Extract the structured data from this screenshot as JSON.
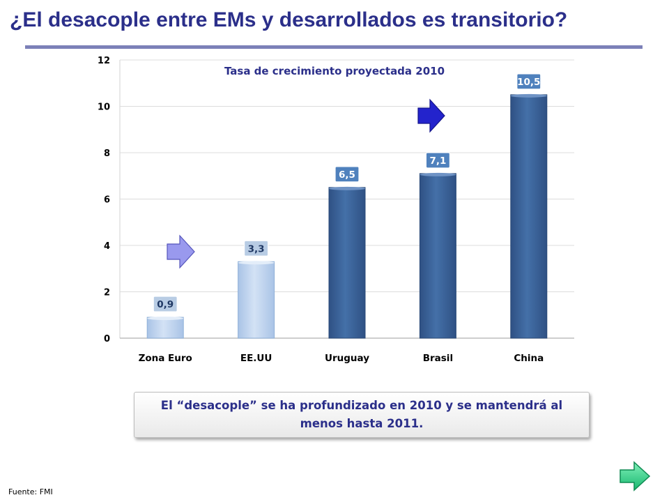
{
  "slide": {
    "title": "¿El desacople entre EMs y desarrollados es transitorio?",
    "callout": "El “desacople” se ha profundizado en 2010 y se mantendrá al menos hasta 2011.",
    "source": "Fuente: FMI"
  },
  "icons": {
    "arrow_light": "right-arrow-icon",
    "arrow_dark": "right-arrow-icon",
    "next": "next-slide-arrow-icon"
  },
  "colors": {
    "title": "#2b2f8a",
    "bar_light": "#c6d9f1",
    "bar_dark": "#3d6397",
    "label_light": "#b8cce4",
    "label_dark": "#4f81bd",
    "arrow_light": "#9999ee",
    "arrow_dark": "#2323cc",
    "next_arrow": "#2fd88e"
  },
  "chart_data": {
    "type": "bar",
    "title": "Tasa de crecimiento proyectada 2010",
    "xlabel": "",
    "ylabel": "",
    "categories": [
      "Zona Euro",
      "EE.UU",
      "Uruguay",
      "Brasil",
      "China"
    ],
    "values": [
      0.9,
      3.3,
      6.5,
      7.1,
      10.5
    ],
    "data_labels": [
      "0,9",
      "3,3",
      "6,5",
      "7,1",
      "10,5"
    ],
    "highlight": [
      "light",
      "light",
      "dark",
      "dark",
      "dark"
    ],
    "ylim": [
      0,
      12
    ],
    "yticks": [
      0,
      2,
      4,
      6,
      8,
      10,
      12
    ],
    "grid": true,
    "legend": "none"
  }
}
